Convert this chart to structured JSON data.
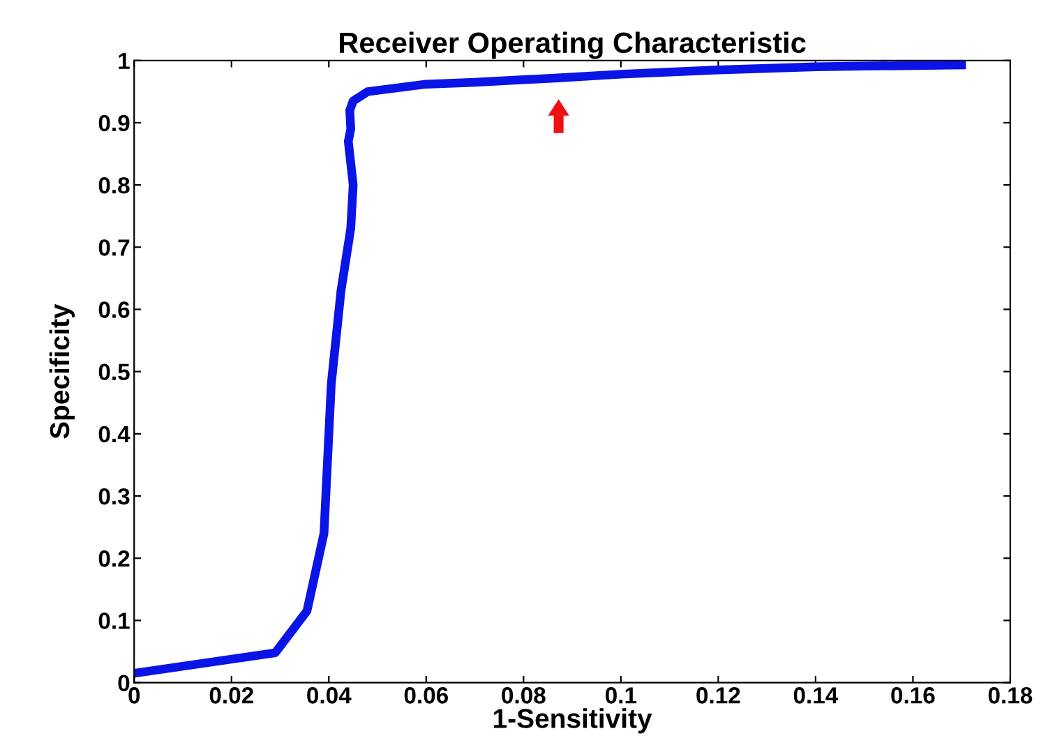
{
  "chart_data": {
    "type": "line",
    "title": "Receiver Operating Characteristic",
    "xlabel": "1-Sensitivity",
    "ylabel": "Specificity",
    "x": [
      0,
      0.029,
      0.0355,
      0.039,
      0.0405,
      0.0425,
      0.0445,
      0.045,
      0.044,
      0.0445,
      0.0443,
      0.045,
      0.048,
      0.06,
      0.07,
      0.087,
      0.1,
      0.12,
      0.14,
      0.17
    ],
    "series": [
      {
        "color": "#0a14e6",
        "values": [
          0.015,
          0.048,
          0.115,
          0.24,
          0.48,
          0.63,
          0.73,
          0.8,
          0.87,
          0.89,
          0.92,
          0.935,
          0.95,
          0.962,
          0.965,
          0.972,
          0.978,
          0.985,
          0.99,
          0.993
        ]
      }
    ],
    "xlim": [
      0,
      0.18
    ],
    "ylim": [
      0,
      1
    ],
    "xticks": [
      0,
      0.02,
      0.04,
      0.06,
      0.08,
      0.1,
      0.12,
      0.14,
      0.16,
      0.18
    ],
    "yticks": [
      0,
      0.1,
      0.2,
      0.3,
      0.4,
      0.5,
      0.6,
      0.7,
      0.8,
      0.9,
      1
    ],
    "grid": false,
    "legend": false,
    "marker": "none",
    "line_style": "solid"
  }
}
